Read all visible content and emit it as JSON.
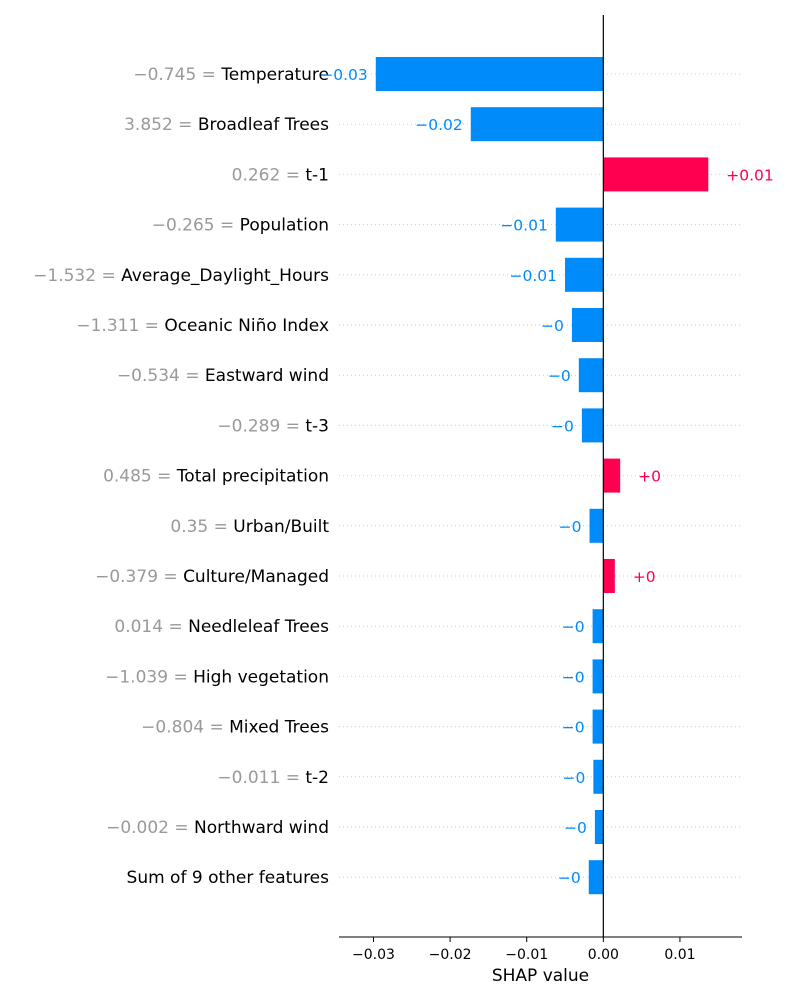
{
  "chart_data": {
    "type": "bar",
    "xlabel": "SHAP value",
    "xlim": [
      -0.0345,
      0.0181
    ],
    "x_ticks": [
      -0.03,
      -0.02,
      -0.01,
      0.0,
      0.01
    ],
    "x_tick_labels": [
      "−0.03",
      "−0.02",
      "−0.01",
      "0.00",
      "0.01"
    ],
    "grid": "dotted horizontal lines per row",
    "colors": {
      "positive": "#ff0051",
      "negative": "#008bfb",
      "feature_value": "#999999",
      "axis": "#000000",
      "grid": "#cccccc"
    },
    "rows": [
      {
        "value_label": "−0.745 = ",
        "feature": "Temperature",
        "shap": -0.0297,
        "label": "−0.03"
      },
      {
        "value_label": "3.852 = ",
        "feature": "Broadleaf Trees",
        "shap": -0.0173,
        "label": "−0.02"
      },
      {
        "value_label": "0.262 = ",
        "feature": "t-1",
        "shap": 0.0137,
        "label": "+0.01"
      },
      {
        "value_label": "−0.265 = ",
        "feature": "Population",
        "shap": -0.0062,
        "label": "−0.01"
      },
      {
        "value_label": "−1.532 = ",
        "feature": "Average_Daylight_Hours",
        "shap": -0.005,
        "label": "−0.01"
      },
      {
        "value_label": "−1.311 = ",
        "feature": "Oceanic Niño Index",
        "shap": -0.0041,
        "label": "−0"
      },
      {
        "value_label": "−0.534 = ",
        "feature": "Eastward wind",
        "shap": -0.0032,
        "label": "−0"
      },
      {
        "value_label": "−0.289 = ",
        "feature": "t-3",
        "shap": -0.0028,
        "label": "−0"
      },
      {
        "value_label": "0.485 = ",
        "feature": "Total precipitation",
        "shap": 0.0022,
        "label": "+0"
      },
      {
        "value_label": "0.35 = ",
        "feature": "Urban/Built",
        "shap": -0.0018,
        "label": "−0"
      },
      {
        "value_label": "−0.379 = ",
        "feature": "Culture/Managed",
        "shap": 0.0015,
        "label": "+0"
      },
      {
        "value_label": "0.014 = ",
        "feature": "Needleleaf Trees",
        "shap": -0.0014,
        "label": "−0"
      },
      {
        "value_label": "−1.039 = ",
        "feature": "High vegetation",
        "shap": -0.0014,
        "label": "−0"
      },
      {
        "value_label": "−0.804 = ",
        "feature": "Mixed Trees",
        "shap": -0.0014,
        "label": "−0"
      },
      {
        "value_label": "−0.011 = ",
        "feature": "t-2",
        "shap": -0.0013,
        "label": "−0"
      },
      {
        "value_label": "−0.002 = ",
        "feature": "Northward wind",
        "shap": -0.0011,
        "label": "−0"
      },
      {
        "value_label": "",
        "feature": "Sum of 9 other features",
        "shap": -0.0019,
        "label": "−0"
      }
    ]
  }
}
